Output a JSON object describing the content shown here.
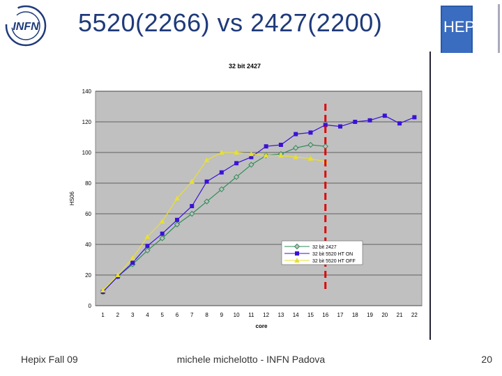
{
  "header": {
    "title": "5520(2266) vs 2427(2200)",
    "logo_left_text": "INFN",
    "logo_right_text": "HEPiX"
  },
  "footer": {
    "left": "Hepix Fall 09",
    "center": "michele michelotto - INFN Padova",
    "page": "20"
  },
  "colors": {
    "title": "#1f3a7a",
    "plot_bg": "#c0c0c0",
    "marker_line": "#e00000"
  },
  "chart_data": {
    "type": "line",
    "title": "32 bit  2427",
    "xlabel": "core",
    "ylabel": "HS06",
    "ylim": [
      0,
      140
    ],
    "yticks": [
      0,
      20,
      40,
      60,
      80,
      100,
      120,
      140
    ],
    "x": [
      1,
      2,
      3,
      4,
      5,
      6,
      7,
      8,
      9,
      10,
      11,
      12,
      13,
      14,
      15,
      16,
      17,
      18,
      19,
      20,
      21,
      22
    ],
    "grid": "horizontal",
    "legend_position": "inside-bottom-right",
    "vertical_marker_x": 16,
    "series": [
      {
        "name": "32 bit 2427",
        "color": "#2e8b57",
        "marker": "diamond-open",
        "values": [
          9,
          19,
          27,
          36,
          44,
          53,
          60,
          68,
          76,
          84,
          92,
          98,
          99,
          103,
          105,
          104,
          null,
          null,
          null,
          null,
          null,
          null
        ]
      },
      {
        "name": "32 bit 5520 HT ON",
        "color": "#3a12d6",
        "marker": "square",
        "values": [
          9,
          19,
          28,
          39,
          47,
          56,
          65,
          81,
          87,
          93,
          97,
          104,
          105,
          112,
          113,
          118,
          117,
          120,
          121,
          124,
          119,
          123
        ]
      },
      {
        "name": "32 bit 5520 HT OFF",
        "color": "#e8e030",
        "marker": "triangle",
        "values": [
          10,
          20,
          31,
          45,
          55,
          70,
          81,
          95,
          100,
          100,
          99,
          98,
          98,
          97,
          96,
          94,
          null,
          null,
          null,
          null,
          null,
          null
        ]
      }
    ]
  }
}
